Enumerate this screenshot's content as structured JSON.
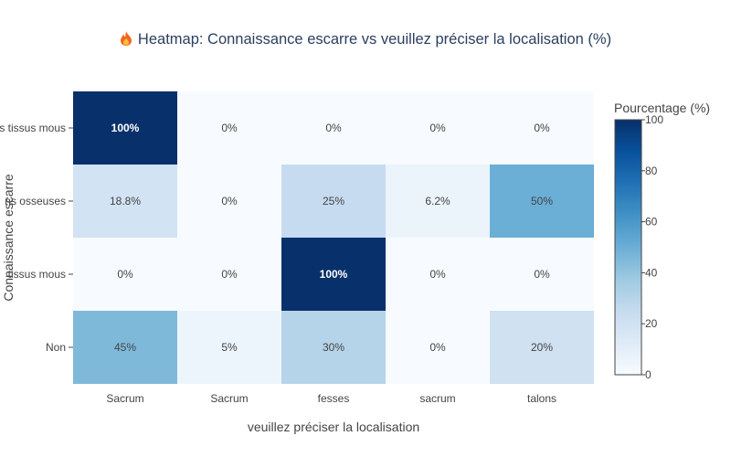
{
  "chart_data": {
    "type": "heatmap",
    "title": "Heatmap: Connaissance escarre vs veuillez préciser la localisation (%)",
    "title_icon": "fire-icon",
    "xlabel": "veuillez préciser la localisation",
    "ylabel": "Connaissance escarre",
    "x_categories": [
      "Sacrum",
      "Sacrum",
      "fesses",
      "sacrum",
      "talons"
    ],
    "y_categories": [
      "s tissus mous",
      "ns osseuses",
      "tissus mous",
      "Non"
    ],
    "values": [
      [
        100,
        0,
        0,
        0,
        0
      ],
      [
        18.8,
        0,
        25,
        6.2,
        50
      ],
      [
        0,
        0,
        100,
        0,
        0
      ],
      [
        45,
        5,
        30,
        0,
        20
      ]
    ],
    "cell_labels": [
      [
        "100%",
        "0%",
        "0%",
        "0%",
        "0%"
      ],
      [
        "18.8%",
        "0%",
        "25%",
        "6.2%",
        "50%"
      ],
      [
        "0%",
        "0%",
        "100%",
        "0%",
        "0%"
      ],
      [
        "45%",
        "5%",
        "30%",
        "0%",
        "20%"
      ]
    ],
    "colorscale": "Blues",
    "zlim": [
      0,
      100
    ],
    "colorbar_title": "Pourcentage (%)",
    "colorbar_ticks": [
      "0",
      "20",
      "40",
      "60",
      "80",
      "100"
    ],
    "colors": {
      "title": "#2a3f5f",
      "text": "#444444",
      "label_light": "#ffffff"
    }
  }
}
